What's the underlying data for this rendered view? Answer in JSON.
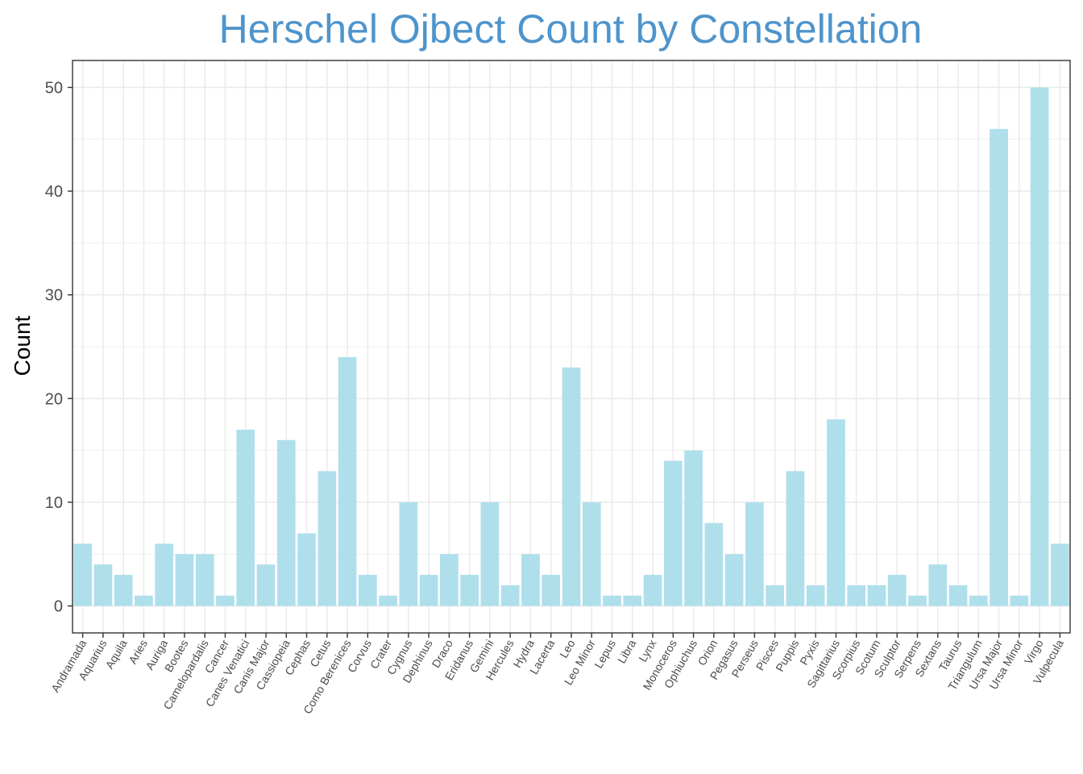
{
  "chart_data": {
    "type": "bar",
    "title": "Herschel Ojbect Count by Constellation",
    "xlabel": "",
    "ylabel": "Count",
    "ylim": [
      -2.6,
      52.6
    ],
    "yticks": [
      0,
      10,
      20,
      30,
      40,
      50
    ],
    "grid": true,
    "colors": {
      "bar": "#b0dfec",
      "title": "#4e94cc",
      "grid": "#ebebeb",
      "panel_border": "#333333"
    },
    "categories": [
      "Andramada",
      "Aquarius",
      "Aquila",
      "Aries",
      "Auriga",
      "Bootes",
      "Camelopardalis",
      "Cancer",
      "Canes Venatici",
      "Canis Major",
      "Cassiopeia",
      "Cephas",
      "Cetus",
      "Como Berenices",
      "Corvus",
      "Crater",
      "Cygnus",
      "Dephinus",
      "Draco",
      "Eridanus",
      "Gemini",
      "Hercules",
      "Hydra",
      "Lacerta",
      "Leo",
      "Leo Minor",
      "Lepus",
      "Libra",
      "Lynx",
      "Monoceros",
      "Ophiuchus",
      "Orion",
      "Pegasus",
      "Perseus",
      "Pisces",
      "Puppis",
      "Pyxis",
      "Sagittarius",
      "Scorpius",
      "Scotum",
      "Sculptor",
      "Serpens",
      "Sextans",
      "Taurus",
      "Triangulum",
      "Ursa Major",
      "Ursa Minor",
      "Virgo",
      "Vulpecula"
    ],
    "values": [
      6,
      4,
      3,
      1,
      6,
      5,
      5,
      1,
      17,
      4,
      16,
      7,
      13,
      24,
      3,
      1,
      10,
      3,
      5,
      3,
      10,
      2,
      5,
      3,
      23,
      10,
      1,
      1,
      3,
      14,
      15,
      8,
      5,
      10,
      2,
      13,
      2,
      18,
      2,
      2,
      3,
      1,
      4,
      2,
      1,
      46,
      1,
      50,
      6
    ]
  }
}
